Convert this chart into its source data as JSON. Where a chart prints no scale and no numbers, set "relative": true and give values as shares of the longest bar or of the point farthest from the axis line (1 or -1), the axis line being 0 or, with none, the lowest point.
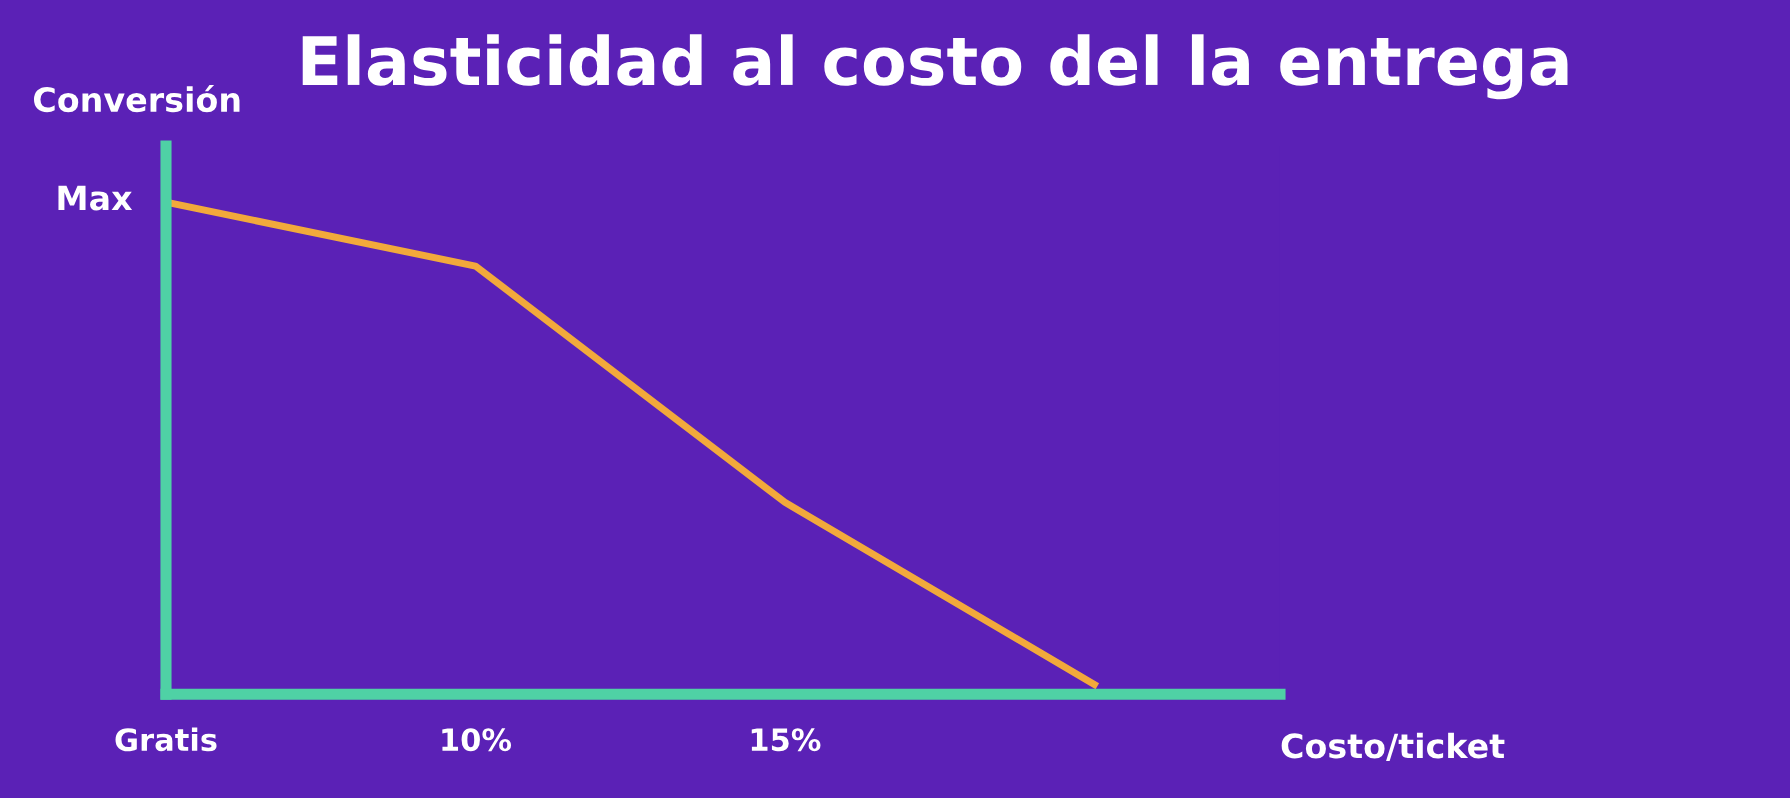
{
  "chart_data": {
    "type": "line",
    "title": "Elasticidad al costo del la entrega",
    "ylabel": "Conversión",
    "xlabel": "Costo/ticket",
    "annotations": [
      "Max"
    ],
    "relative": true,
    "categories": [
      "Gratis",
      "10%",
      "15%",
      null
    ],
    "series": [
      {
        "color": "#f2a93b",
        "values": [
          1,
          0.87,
          0.39,
          0.02
        ]
      }
    ],
    "grid": false,
    "legend": false,
    "marker": "none",
    "line_style": "solid"
  }
}
